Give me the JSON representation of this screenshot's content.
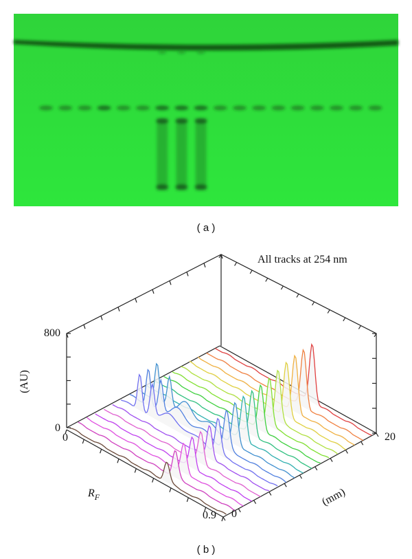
{
  "panel_a": {
    "label": "( a )"
  },
  "panel_b": {
    "label": "( b )",
    "title": "All tracks at 254 nm",
    "z_axis": {
      "label": "(AU)",
      "ticks": [
        "0",
        "800"
      ]
    },
    "rf_axis": {
      "label": "R",
      "label_sub": "F",
      "ticks": [
        "0",
        "0.9"
      ]
    },
    "mm_axis": {
      "label": "(mm)",
      "ticks": [
        "0",
        "20"
      ]
    }
  }
}
